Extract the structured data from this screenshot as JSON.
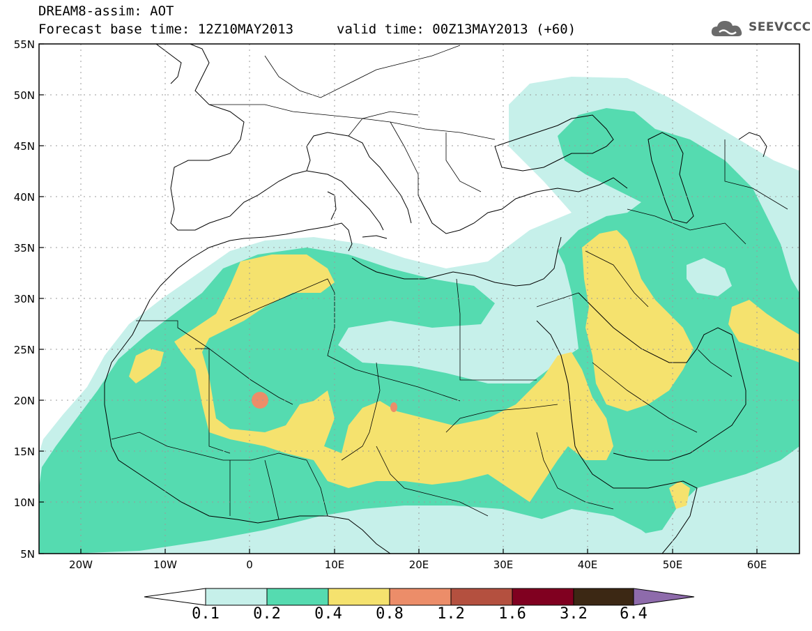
{
  "header": {
    "title_line1": "DREAM8-assim: AOT",
    "title_line2": "Forecast base time: 12Z10MAY2013",
    "valid_time": "valid time: 00Z13MAY2013 (+60)"
  },
  "logo": {
    "text": "SEEVCCC",
    "icon": "cloud-icon"
  },
  "axes": {
    "lat_labels": [
      "55N",
      "50N",
      "45N",
      "40N",
      "35N",
      "30N",
      "25N",
      "20N",
      "15N",
      "10N",
      "5N"
    ],
    "lon_labels": [
      "20W",
      "10W",
      "0",
      "10E",
      "20E",
      "30E",
      "40E",
      "50E",
      "60E"
    ]
  },
  "colorbar": {
    "labels": [
      "0.1",
      "0.2",
      "0.4",
      "0.8",
      "1.2",
      "1.6",
      "3.2",
      "6.4"
    ],
    "colors": [
      "#ffffff",
      "#c6f0ea",
      "#55dbb0",
      "#f5e26e",
      "#ec8d69",
      "#b4503f",
      "#800020",
      "#3c2814",
      "#8e6bab"
    ]
  }
}
